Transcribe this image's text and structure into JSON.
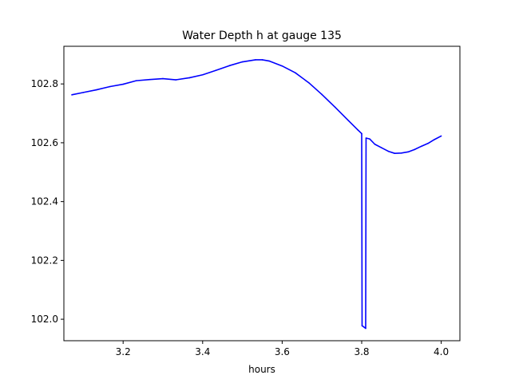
{
  "chart_data": {
    "type": "line",
    "title": "Water Depth h at gauge 135",
    "xlabel": "hours",
    "ylabel": "",
    "xlim": [
      3.051,
      4.047
    ],
    "ylim": [
      101.927,
      102.928
    ],
    "x_ticks": [
      3.2,
      3.4,
      3.6,
      3.8,
      4.0
    ],
    "x_tick_labels": [
      "3.2",
      "3.4",
      "3.6",
      "3.8",
      "4.0"
    ],
    "y_ticks": [
      102.0,
      102.2,
      102.4,
      102.6,
      102.8
    ],
    "y_tick_labels": [
      "102.0",
      "102.2",
      "102.4",
      "102.6",
      "102.8"
    ],
    "grid": false,
    "series": [
      {
        "name": "",
        "color": "#0000ff",
        "x": [
          3.071,
          3.1,
          3.133,
          3.167,
          3.2,
          3.233,
          3.267,
          3.3,
          3.333,
          3.367,
          3.4,
          3.433,
          3.467,
          3.5,
          3.533,
          3.55,
          3.567,
          3.6,
          3.633,
          3.667,
          3.7,
          3.733,
          3.767,
          3.79,
          3.8,
          3.801,
          3.81,
          3.811,
          3.82,
          3.833,
          3.85,
          3.867,
          3.883,
          3.9,
          3.917,
          3.933,
          3.95,
          3.967,
          3.983,
          4.0
        ],
        "y": [
          102.763,
          102.771,
          102.78,
          102.791,
          102.799,
          102.811,
          102.815,
          102.818,
          102.814,
          102.821,
          102.831,
          102.846,
          102.862,
          102.875,
          102.882,
          102.882,
          102.878,
          102.861,
          102.838,
          102.804,
          102.764,
          102.721,
          102.675,
          102.644,
          102.631,
          101.978,
          101.969,
          102.616,
          102.613,
          102.595,
          102.583,
          102.571,
          102.564,
          102.565,
          102.569,
          102.577,
          102.588,
          102.598,
          102.611,
          102.623
        ]
      }
    ]
  }
}
